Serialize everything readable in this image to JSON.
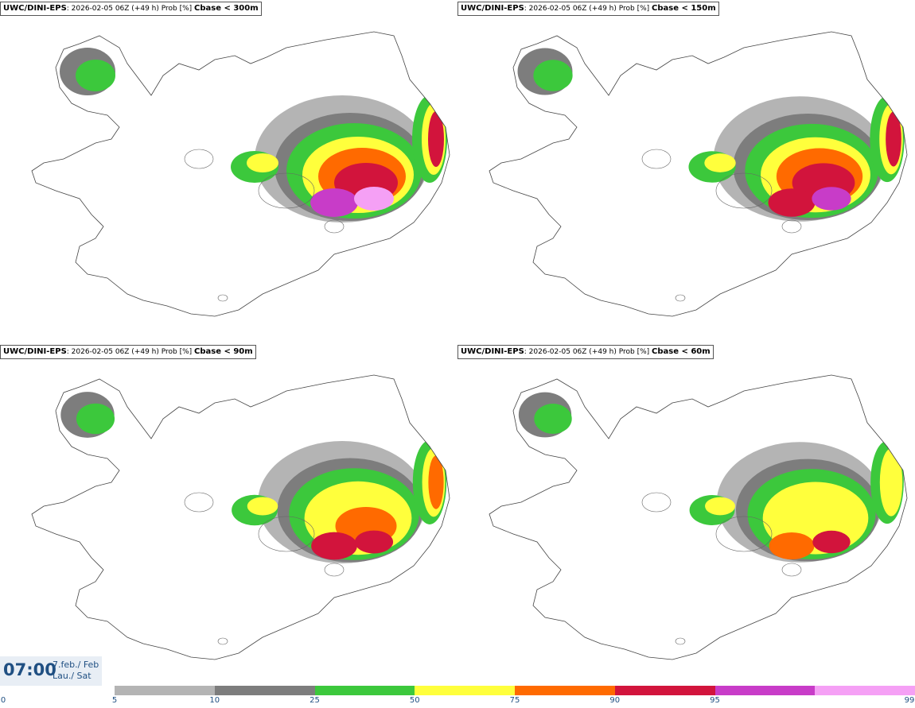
{
  "panels": [
    {
      "source": "UWC/DINI-EPS",
      "meta": ": 2026-02-05 06Z (+49 h) Prob [%] ",
      "variable": "Cbase < 300m",
      "intensity": 1.0
    },
    {
      "source": "UWC/DINI-EPS",
      "meta": ": 2026-02-05 06Z (+49 h) Prob [%] ",
      "variable": "Cbase < 150m",
      "intensity": 0.9
    },
    {
      "source": "UWC/DINI-EPS",
      "meta": ": 2026-02-05 06Z (+49 h) Prob [%] ",
      "variable": "Cbase < 90m",
      "intensity": 0.75
    },
    {
      "source": "UWC/DINI-EPS",
      "meta": ": 2026-02-05 06Z (+49 h) Prob [%] ",
      "variable": "Cbase < 60m",
      "intensity": 0.65
    }
  ],
  "time": {
    "clock": "07:00",
    "date_line1": "7.feb./ Feb",
    "date_line2": "Lau./ Sat"
  },
  "legend": {
    "ticks": [
      "0",
      "5",
      "10",
      "25",
      "50",
      "75",
      "90",
      "95",
      "99"
    ],
    "colors": [
      "#b4b4b4",
      "#7d7d7d",
      "#3cc83c",
      "#ffff3c",
      "#ff6a00",
      "#d2143c",
      "#c83cc8",
      "#f5a0f5"
    ]
  }
}
